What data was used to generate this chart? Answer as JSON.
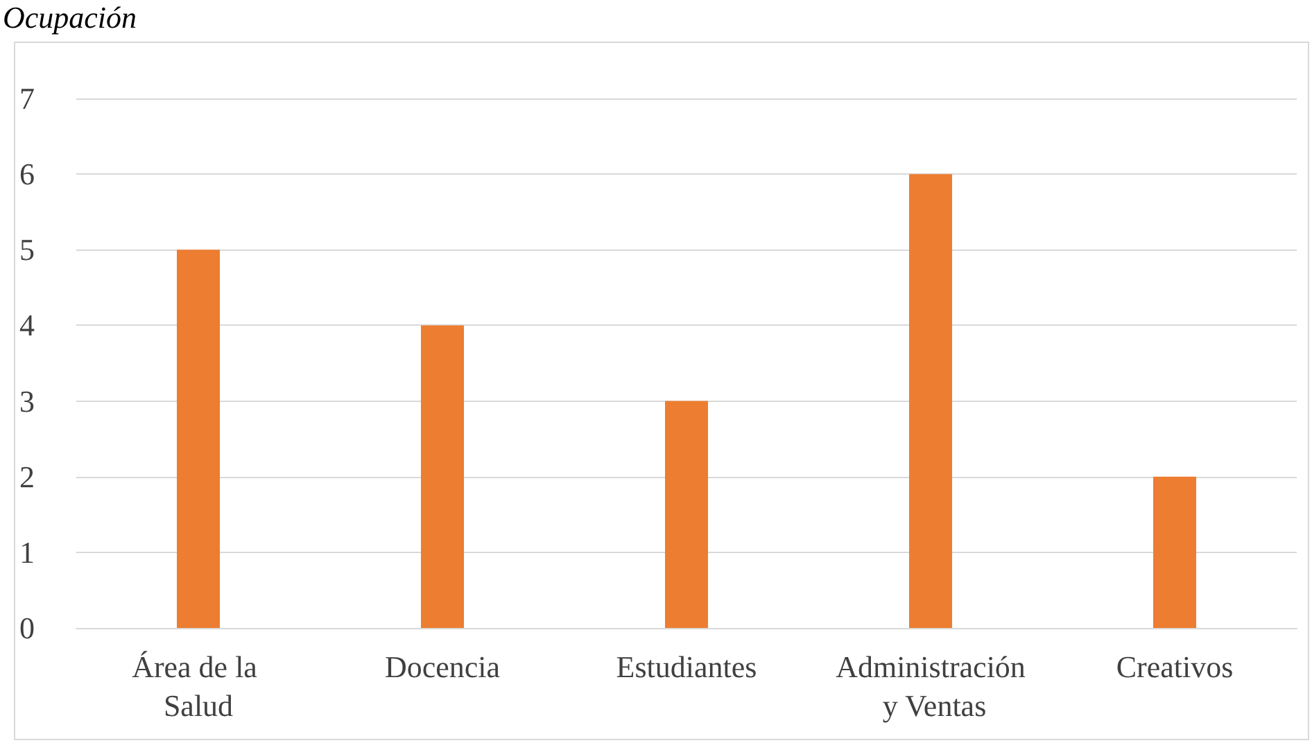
{
  "chart_data": {
    "type": "bar",
    "title": "Ocupación",
    "categories": [
      "Área de la Salud",
      "Docencia",
      "Estudiantes",
      "Administración y Ventas",
      "Creativos"
    ],
    "values": [
      5,
      4,
      3,
      6,
      2
    ],
    "color": "#ed7d31",
    "ylim": [
      0,
      7
    ],
    "yticks": [
      0,
      1,
      2,
      3,
      4,
      5,
      6,
      7
    ],
    "grid": "y"
  }
}
